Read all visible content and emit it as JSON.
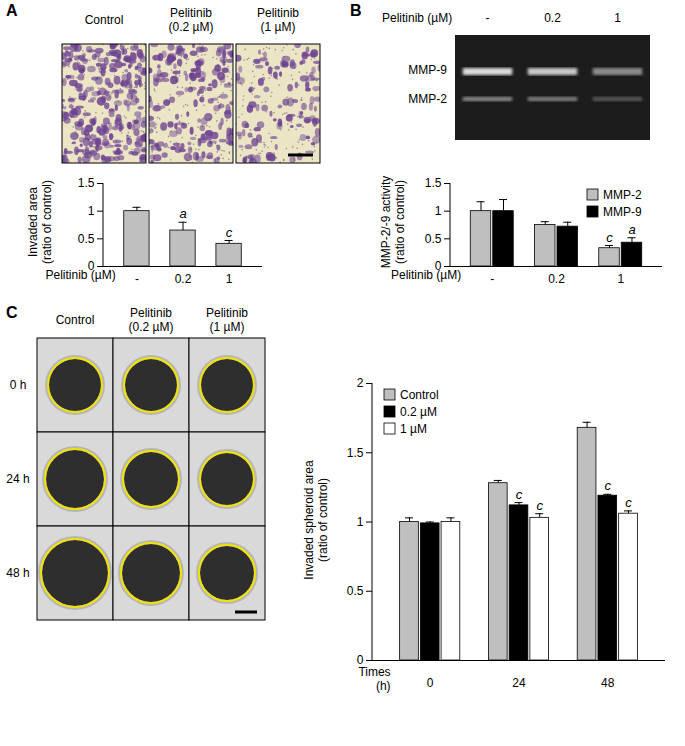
{
  "chart_data": [
    {
      "type": "bar",
      "y_label": "Invaded area\n(ratio of control)",
      "x_label": "Pelitinib (µM)",
      "categories": [
        "-",
        "0.2",
        "1"
      ],
      "values": [
        1.0,
        0.65,
        0.41
      ],
      "errors": [
        0.07,
        0.15,
        0.06
      ],
      "significance": [
        null,
        "a",
        "c"
      ],
      "color": "#bfbfbf",
      "ylim": [
        0,
        1.5
      ],
      "yticks": [
        0,
        0.5,
        1,
        1.5
      ]
    },
    {
      "type": "bar",
      "y_label": "MMP-2/-9 activity\n(ratio of control)",
      "x_label": "Pelitinib (µM)",
      "categories": [
        "-",
        "0.2",
        "1"
      ],
      "series": [
        {
          "name": "MMP-2",
          "color": "#bfbfbf",
          "values": [
            1.0,
            0.75,
            0.33
          ],
          "errors": [
            0.17,
            0.06,
            0.05
          ],
          "significance": [
            null,
            null,
            "c"
          ]
        },
        {
          "name": "MMP-9",
          "color": "#000000",
          "values": [
            1.0,
            0.72,
            0.43
          ],
          "errors": [
            0.21,
            0.08,
            0.09
          ],
          "significance": [
            null,
            null,
            "a"
          ]
        }
      ],
      "legend": "top-right",
      "ylim": [
        0,
        1.5
      ],
      "yticks": [
        0,
        0.5,
        1,
        1.5
      ]
    },
    {
      "type": "bar",
      "y_label": "Invaded spheroid area\n(ratio of control)",
      "x_label": "Times\n(h)",
      "categories": [
        0,
        24,
        48
      ],
      "series": [
        {
          "name": "Control",
          "color": "#bfbfbf",
          "values": [
            1.0,
            1.28,
            1.68
          ],
          "errors": [
            0.03,
            0.02,
            0.04
          ],
          "significance": [
            null,
            null,
            null
          ]
        },
        {
          "name": "0.2 µM",
          "color": "#000000",
          "values": [
            0.99,
            1.12,
            1.19
          ],
          "errors": [
            0.01,
            0.02,
            0.01
          ],
          "significance": [
            null,
            "c",
            "c"
          ]
        },
        {
          "name": "1 µM",
          "color": "#ffffff",
          "values": [
            1.0,
            1.03,
            1.06
          ],
          "errors": [
            0.03,
            0.03,
            0.02
          ],
          "significance": [
            null,
            "c",
            "c"
          ]
        }
      ],
      "legend": "top-left",
      "ylim": [
        0,
        2
      ],
      "yticks": [
        0,
        0.5,
        1,
        1.5,
        2
      ]
    }
  ],
  "images": [
    {
      "panel": "A",
      "columns": [
        "Control",
        "Pelitinib\n(0.2 µM)",
        "Pelitinib\n(1 µM)"
      ]
    },
    {
      "panel": "B",
      "label": "Pelitinib (µM)",
      "columns": [
        "-",
        "0.2",
        "1"
      ],
      "bands": [
        "MMP-9",
        "MMP-2"
      ]
    },
    {
      "panel": "C",
      "columns": [
        "Control",
        "Pelitinib\n(0.2 µM)",
        "Pelitinib\n(1 µM)"
      ],
      "rows": [
        "0 h",
        "24 h",
        "48 h"
      ]
    }
  ]
}
